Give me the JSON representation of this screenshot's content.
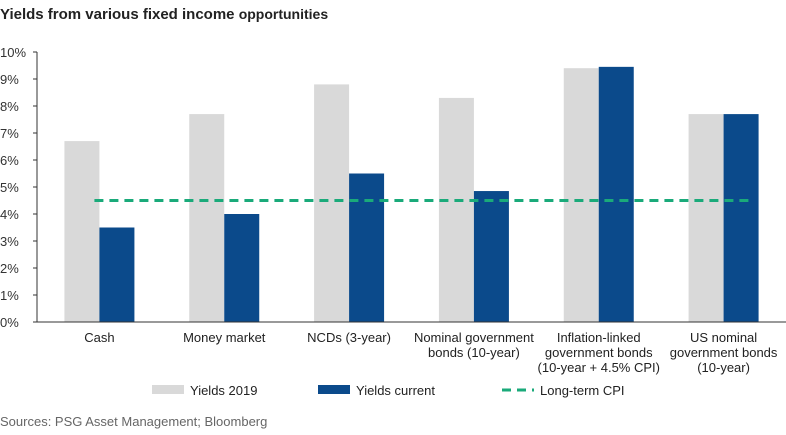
{
  "title_main": "Yields from various fixed income",
  "title_sub": "opportunities",
  "source": "Sources: PSG Asset Management; Bloomberg",
  "colors": {
    "yields_2019": "#d9d9d9",
    "yields_current": "#0b4a8b",
    "cpi": "#1aaa7a"
  },
  "chart_data": {
    "type": "bar",
    "categories": [
      [
        "Cash"
      ],
      [
        "Money market"
      ],
      [
        "NCDs (3-year)"
      ],
      [
        "Nominal government",
        "bonds (10-year)"
      ],
      [
        "Inflation-linked",
        "government bonds",
        "(10-year + 4.5% CPI)"
      ],
      [
        "US nominal",
        "government bonds",
        "(10-year)"
      ]
    ],
    "series": [
      {
        "name": "Yields 2019",
        "values": [
          6.7,
          7.7,
          8.8,
          8.3,
          9.4,
          7.7
        ]
      },
      {
        "name": "Yields current",
        "values": [
          3.5,
          4.0,
          5.5,
          4.85,
          9.45,
          7.7
        ]
      }
    ],
    "reference_line": {
      "name": "Long-term CPI",
      "value": 4.5,
      "style": "dashed"
    },
    "yticks": [
      "0%",
      "1%",
      "2%",
      "3%",
      "4%",
      "5%",
      "6%",
      "7%",
      "8%",
      "9%",
      "10%"
    ],
    "ylim": [
      0,
      10
    ],
    "legend": [
      "Yields 2019",
      "Yields current",
      "Long-term CPI"
    ],
    "legend_position": "bottom"
  }
}
